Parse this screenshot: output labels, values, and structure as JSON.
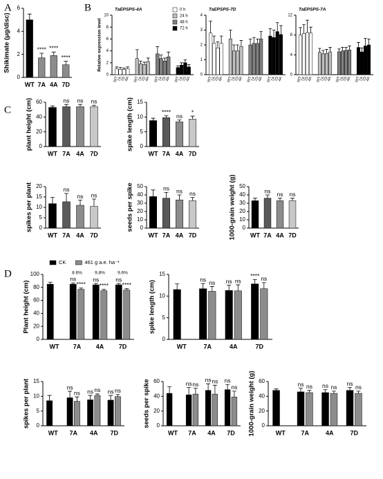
{
  "chart_data": [
    {
      "type": "bar",
      "panel": "A",
      "ylabel": "Shikimate (μg/disc)",
      "categories": [
        "WT",
        "7A",
        "4A",
        "7D"
      ],
      "values": [
        5.0,
        1.7,
        1.9,
        1.1
      ],
      "errors": [
        0.5,
        0.4,
        0.3,
        0.3
      ],
      "colors": [
        "#000000",
        "#8c8c8c",
        "#8c8c8c",
        "#8c8c8c"
      ],
      "annotations": [
        null,
        "****",
        "****",
        "****"
      ],
      "ylim": [
        0,
        6
      ],
      "yticks": [
        0,
        2,
        4,
        6
      ]
    },
    {
      "type": "bar",
      "panel": "B",
      "title": "TaEPSPS-4A",
      "ylabel": "Relative expression level",
      "group_by": "series",
      "legend": "upper right",
      "categories": [
        "WT",
        "7A",
        "7D",
        "4A"
      ],
      "series": [
        {
          "name": "0 h",
          "color": "#ffffff",
          "values": [
            1.0,
            0.9,
            0.9,
            1.0
          ],
          "errors": [
            0.3,
            0.3,
            0.2,
            0.3
          ]
        },
        {
          "name": "24 h",
          "color": "#bfbfbf",
          "values": [
            2.7,
            1.8,
            1.7,
            2.2
          ],
          "errors": [
            1.5,
            0.5,
            0.4,
            0.6
          ]
        },
        {
          "name": "48 h",
          "color": "#808080",
          "values": [
            3.5,
            2.7,
            2.3,
            3.0
          ],
          "errors": [
            1.2,
            0.6,
            0.5,
            0.8
          ]
        },
        {
          "name": "72 h",
          "color": "#000000",
          "values": [
            1.2,
            1.6,
            2.0,
            1.3
          ],
          "errors": [
            0.3,
            0.4,
            0.5,
            0.4
          ]
        }
      ],
      "ylim": [
        0,
        10
      ],
      "yticks": [
        0,
        2,
        4,
        6,
        8,
        10
      ]
    },
    {
      "type": "bar",
      "title": "TaEPSPS-7D",
      "group_by": "series",
      "categories": [
        "WT",
        "7A",
        "7D",
        "4A"
      ],
      "series": [
        {
          "name": "0 h",
          "color": "#ffffff",
          "values": [
            2.8,
            2.1,
            1.8,
            2.1
          ],
          "errors": [
            0.8,
            0.5,
            0.4,
            0.5
          ]
        },
        {
          "name": "24 h",
          "color": "#bfbfbf",
          "values": [
            2.4,
            1.6,
            1.6,
            1.9
          ],
          "errors": [
            0.6,
            0.4,
            0.4,
            0.4
          ]
        },
        {
          "name": "48 h",
          "color": "#808080",
          "values": [
            2.0,
            2.1,
            2.1,
            2.4
          ],
          "errors": [
            0.4,
            0.4,
            0.3,
            0.5
          ]
        },
        {
          "name": "72 h",
          "color": "#000000",
          "values": [
            2.6,
            2.5,
            2.9,
            2.7
          ],
          "errors": [
            0.5,
            0.5,
            0.6,
            0.6
          ]
        }
      ],
      "ylim": [
        0,
        4
      ],
      "yticks": [
        0,
        1,
        2,
        3,
        4
      ]
    },
    {
      "type": "bar",
      "title": "TaEPSPS-7A",
      "group_by": "series",
      "categories": [
        "WT",
        "7A",
        "7D",
        "4A"
      ],
      "series": [
        {
          "name": "0 h",
          "color": "#ffffff",
          "values": [
            8.0,
            8.3,
            8.5,
            8.4
          ],
          "errors": [
            1.5,
            1.8,
            2.5,
            1.2
          ]
        },
        {
          "name": "24 h",
          "color": "#bfbfbf",
          "values": [
            4.5,
            4.2,
            4.3,
            4.6
          ],
          "errors": [
            0.8,
            0.7,
            0.8,
            0.9
          ]
        },
        {
          "name": "48 h",
          "color": "#808080",
          "values": [
            4.6,
            4.8,
            4.9,
            5.0
          ],
          "errors": [
            0.6,
            0.7,
            0.6,
            0.8
          ]
        },
        {
          "name": "72 h",
          "color": "#000000",
          "values": [
            5.5,
            4.6,
            5.8,
            6.0
          ],
          "errors": [
            1.0,
            0.8,
            1.5,
            1.2
          ]
        }
      ],
      "ylim": [
        0,
        12
      ],
      "yticks": [
        0,
        4,
        8,
        12
      ]
    },
    {
      "type": "bar",
      "panel": "C",
      "ylabel": "plant height (cm)",
      "categories": [
        "WT",
        "7A",
        "4A",
        "7D"
      ],
      "values": [
        53,
        54,
        54,
        54
      ],
      "errors": [
        2,
        3,
        3,
        2
      ],
      "colors": [
        "#000000",
        "#5a5a5a",
        "#8c8c8c",
        "#c8c8c8"
      ],
      "annotations": [
        null,
        "ns",
        "ns",
        "ns"
      ],
      "ylim": [
        0,
        60
      ],
      "yticks": [
        0,
        20,
        40,
        60
      ]
    },
    {
      "type": "bar",
      "ylabel": "spike length (cm)",
      "categories": [
        "WT",
        "7A",
        "4A",
        "7D"
      ],
      "values": [
        8.8,
        9.8,
        8.4,
        9.3
      ],
      "errors": [
        0.8,
        0.6,
        0.6,
        1.0
      ],
      "colors": [
        "#000000",
        "#5a5a5a",
        "#8c8c8c",
        "#c8c8c8"
      ],
      "annotations": [
        null,
        "****",
        "ns",
        "*"
      ],
      "ylim": [
        0,
        15
      ],
      "yticks": [
        0,
        5,
        10,
        15
      ]
    },
    {
      "type": "bar",
      "ylabel": "spikes per plant",
      "categories": [
        "WT",
        "7A",
        "4A",
        "7D"
      ],
      "values": [
        11.8,
        12.7,
        11.0,
        10.5
      ],
      "errors": [
        3,
        4,
        2.5,
        3.5
      ],
      "colors": [
        "#000000",
        "#5a5a5a",
        "#8c8c8c",
        "#c8c8c8"
      ],
      "annotations": [
        null,
        "ns",
        "ns",
        "ns"
      ],
      "ylim": [
        0,
        20
      ],
      "yticks": [
        0,
        5,
        10,
        15,
        20
      ]
    },
    {
      "type": "bar",
      "ylabel": "seeds per spike",
      "categories": [
        "WT",
        "7A",
        "4A",
        "7D"
      ],
      "values": [
        38,
        36,
        34,
        33
      ],
      "errors": [
        8,
        7,
        6,
        4
      ],
      "colors": [
        "#000000",
        "#5a5a5a",
        "#8c8c8c",
        "#c8c8c8"
      ],
      "annotations": [
        null,
        "ns",
        "ns",
        "ns"
      ],
      "ylim": [
        0,
        50
      ],
      "yticks": [
        0,
        10,
        20,
        30,
        40,
        50
      ]
    },
    {
      "type": "bar",
      "ylabel": "1000-grain weight (g)",
      "categories": [
        "WT",
        "7A",
        "4A",
        "7D"
      ],
      "values": [
        33,
        36,
        33,
        33
      ],
      "errors": [
        3,
        4,
        3,
        3
      ],
      "colors": [
        "#000000",
        "#5a5a5a",
        "#8c8c8c",
        "#c8c8c8"
      ],
      "annotations": [
        null,
        "ns",
        "ns",
        "ns"
      ],
      "ylim": [
        0,
        50
      ],
      "yticks": [
        0,
        10,
        20,
        30,
        40,
        50
      ]
    },
    {
      "type": "bar",
      "panel": "D",
      "ylabel": "Plant height (cm)",
      "legend": "top",
      "categories": [
        "WT",
        "7A",
        "4A",
        "7D"
      ],
      "group_labels": [
        null,
        "8.6%",
        "9.8%",
        "9.6%"
      ],
      "series": [
        {
          "name": "CK",
          "color": "#000000",
          "values": [
            85,
            85,
            84,
            84
          ],
          "errors": [
            3,
            2,
            2,
            2
          ],
          "annotations": [
            null,
            "ns",
            "ns",
            "ns"
          ]
        },
        {
          "name": "461 g a.e. ha⁻¹",
          "color": "#8c8c8c",
          "values": [
            null,
            77,
            75,
            76
          ],
          "errors": [
            null,
            2,
            2,
            2
          ],
          "annotations": [
            null,
            "****",
            "****",
            "****"
          ]
        }
      ],
      "ylim": [
        0,
        100
      ],
      "yticks": [
        0,
        20,
        40,
        60,
        80,
        100
      ]
    },
    {
      "type": "bar",
      "ylabel": "spike length (cm)",
      "categories": [
        "WT",
        "7A",
        "4A",
        "7D"
      ],
      "series": [
        {
          "name": "CK",
          "color": "#000000",
          "values": [
            11.5,
            11.7,
            11.3,
            12.8
          ],
          "errors": [
            1.3,
            1.2,
            1.2,
            1.0
          ],
          "annotations": [
            null,
            "ns",
            "ns",
            "****"
          ]
        },
        {
          "name": "461 g a.e. ha⁻¹",
          "color": "#8c8c8c",
          "values": [
            null,
            11.1,
            11.2,
            11.7
          ],
          "errors": [
            null,
            1.1,
            1.4,
            1.4
          ],
          "annotations": [
            null,
            "ns",
            "ns",
            "ns"
          ]
        }
      ],
      "ylim": [
        0,
        15
      ],
      "yticks": [
        0,
        5,
        10,
        15
      ]
    },
    {
      "type": "bar",
      "ylabel": "spikes per plant",
      "categories": [
        "WT",
        "7A",
        "4A",
        "7D"
      ],
      "series": [
        {
          "name": "CK",
          "color": "#000000",
          "values": [
            8.5,
            9.5,
            8.8,
            8.7
          ],
          "errors": [
            1.8,
            2.2,
            1.5,
            1.6
          ],
          "annotations": [
            null,
            "ns",
            "ns",
            "ns"
          ]
        },
        {
          "name": "461 g a.e. ha⁻¹",
          "color": "#8c8c8c",
          "values": [
            null,
            8.3,
            10.3,
            9.9
          ],
          "errors": [
            null,
            1.5,
            0.5,
            0.7
          ],
          "annotations": [
            null,
            "ns",
            "ns",
            "ns"
          ]
        }
      ],
      "ylim": [
        0,
        15
      ],
      "yticks": [
        0,
        5,
        10,
        15
      ]
    },
    {
      "type": "bar",
      "ylabel": "seeds per spike",
      "categories": [
        "WT",
        "7A",
        "4A",
        "7D"
      ],
      "series": [
        {
          "name": "CK",
          "color": "#000000",
          "values": [
            44,
            42,
            48,
            49
          ],
          "errors": [
            9,
            10,
            9,
            7
          ],
          "annotations": [
            null,
            "ns",
            "ns",
            "ns"
          ]
        },
        {
          "name": "461 g a.e. ha⁻¹",
          "color": "#8c8c8c",
          "values": [
            null,
            43,
            43,
            39
          ],
          "errors": [
            null,
            8,
            12,
            8
          ],
          "annotations": [
            null,
            "ns",
            "ns",
            "ns"
          ]
        }
      ],
      "ylim": [
        0,
        60
      ],
      "yticks": [
        0,
        20,
        40,
        60
      ]
    },
    {
      "type": "bar",
      "ylabel": "1000-grain weight (g)",
      "categories": [
        "WT",
        "7A",
        "4A",
        "7D"
      ],
      "series": [
        {
          "name": "CK",
          "color": "#000000",
          "values": [
            48,
            46,
            45,
            48
          ],
          "errors": [
            2,
            5,
            4,
            4
          ],
          "annotations": [
            null,
            "ns",
            "ns",
            "ns"
          ]
        },
        {
          "name": "461 g a.e. ha⁻¹",
          "color": "#8c8c8c",
          "values": [
            null,
            45,
            44,
            44
          ],
          "errors": [
            null,
            3,
            3,
            3
          ],
          "annotations": [
            null,
            "ns",
            "ns",
            "ns"
          ]
        }
      ],
      "ylim": [
        0,
        60
      ],
      "yticks": [
        0,
        20,
        40,
        60
      ]
    }
  ]
}
